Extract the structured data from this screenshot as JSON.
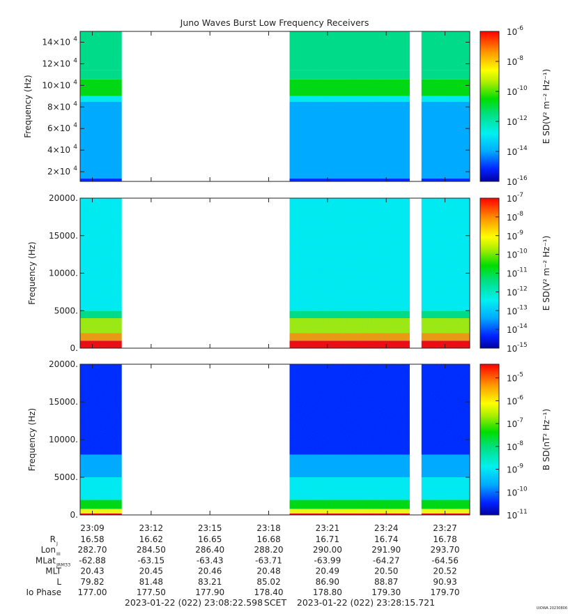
{
  "chart_data": {
    "type": "heatmap",
    "title": "Juno Waves Burst Low Frequency Receivers",
    "time_ticks": [
      "23:09",
      "23:12",
      "23:15",
      "23:18",
      "23:21",
      "23:24",
      "23:27"
    ],
    "panels": [
      {
        "id": "upper",
        "ylabel": "Frequency (Hz)",
        "ytick_labels": [
          {
            "mant": "2×10",
            "exp": "4"
          },
          {
            "mant": "4×10",
            "exp": "4"
          },
          {
            "mant": "6×10",
            "exp": "4"
          },
          {
            "mant": "8×10",
            "exp": "4"
          },
          {
            "mant": "10×10",
            "exp": "4"
          },
          {
            "mant": "12×10",
            "exp": "4"
          },
          {
            "mant": "14×10",
            "exp": "4"
          }
        ],
        "ytick_values": [
          20000,
          40000,
          60000,
          80000,
          100000,
          120000,
          140000
        ],
        "ylim": [
          11000,
          150000
        ],
        "colorbar_label": "E SD(V² m⁻² Hz⁻¹)",
        "colorbar_exps": [
          "-6",
          "-8",
          "-10",
          "-12",
          "-14",
          "-16"
        ],
        "colorbar_range": [
          -16,
          -6
        ]
      },
      {
        "id": "middle",
        "ylabel": "Frequency (Hz)",
        "ytick_labels": [
          "0.",
          "5000.",
          "10000.",
          "15000.",
          "20000."
        ],
        "ytick_values": [
          0,
          5000,
          10000,
          15000,
          20000
        ],
        "ylim": [
          0,
          20000
        ],
        "colorbar_label": "E SD(V² m⁻² Hz⁻¹)",
        "colorbar_exps": [
          "-7",
          "-8",
          "-9",
          "-10",
          "-11",
          "-12",
          "-13",
          "-14",
          "-15"
        ],
        "colorbar_range": [
          -15,
          -7
        ]
      },
      {
        "id": "lower",
        "ylabel": "Frequency (Hz)",
        "ytick_labels": [
          "0.",
          "5000.",
          "10000.",
          "15000.",
          "20000."
        ],
        "ytick_values": [
          0,
          5000,
          10000,
          15000,
          20000
        ],
        "ylim": [
          0,
          20000
        ],
        "colorbar_label": "B SD(nT² Hz⁻¹)",
        "colorbar_exps": [
          "-5",
          "-6",
          "-7",
          "-8",
          "-9",
          "-10",
          "-11"
        ],
        "colorbar_range": [
          -11,
          -4.4
        ]
      }
    ],
    "data_gaps": [
      [
        "23:10:30",
        "23:19:04"
      ],
      [
        "23:25:12",
        "23:25:48"
      ]
    ]
  },
  "ephemeris": {
    "rows": [
      {
        "label": "R",
        "sub": "J",
        "values": [
          "16.58",
          "16.62",
          "16.65",
          "16.68",
          "16.71",
          "16.74",
          "16.78"
        ]
      },
      {
        "label": "Lon",
        "sub": "III",
        "values": [
          "282.70",
          "284.50",
          "286.40",
          "288.20",
          "290.00",
          "291.90",
          "293.70"
        ]
      },
      {
        "label": "MLat",
        "sub": "JRM33",
        "values": [
          "-62.88",
          "-63.15",
          "-63.43",
          "-63.71",
          "-63.99",
          "-64.27",
          "-64.56"
        ]
      },
      {
        "label": "MLT",
        "sub": "",
        "values": [
          "20.43",
          "20.45",
          "20.46",
          "20.48",
          "20.49",
          "20.50",
          "20.52"
        ]
      },
      {
        "label": "L",
        "sub": "",
        "values": [
          "79.82",
          "81.48",
          "83.21",
          "85.02",
          "86.90",
          "88.87",
          "90.93"
        ]
      },
      {
        "label": "Io Phase",
        "sub": "",
        "values": [
          "177.00",
          "177.50",
          "177.90",
          "178.40",
          "178.80",
          "179.30",
          "179.70"
        ]
      }
    ]
  },
  "footer": {
    "start": "2023-01-22 (022) 23:08:22.598",
    "scet": "SCET",
    "end": "2023-01-22 (022) 23:28:15.721",
    "credit": "UIOWA 20230806"
  }
}
